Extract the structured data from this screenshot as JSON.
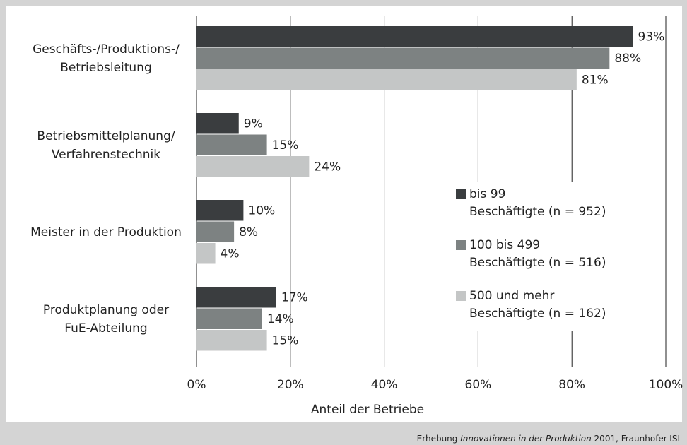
{
  "chart_data": {
    "type": "barh",
    "categories": [
      [
        "Geschäfts-/Produktions-/",
        "Betriebsleitung"
      ],
      [
        "Betriebsmittelplanung/",
        "Verfahrenstechnik"
      ],
      [
        "Meister in der Produktion"
      ],
      [
        "Produktplanung oder",
        "FuE-Abteilung"
      ]
    ],
    "series": [
      {
        "name": [
          "bis 99",
          "Beschäftigte (n = 952)"
        ],
        "color": "#3a3d3f",
        "values": [
          93,
          9,
          10,
          17
        ],
        "value_labels": [
          "93%",
          "9%",
          "10%",
          "17%"
        ]
      },
      {
        "name": [
          "100 bis 499",
          "Beschäftigte (n = 516)"
        ],
        "color": "#7d8282",
        "values": [
          88,
          15,
          8,
          14
        ],
        "value_labels": [
          "88%",
          "15%",
          "8%",
          "14%"
        ]
      },
      {
        "name": [
          "500 und mehr",
          "Beschäftigte (n = 162)"
        ],
        "color": "#c4c6c6",
        "values": [
          81,
          24,
          4,
          15
        ],
        "value_labels": [
          "81%",
          "24%",
          "4%",
          "15%"
        ]
      }
    ],
    "xlim": [
      0,
      100
    ],
    "xticks": [
      {
        "value": 0,
        "label": "0%"
      },
      {
        "value": 20,
        "label": "20%"
      },
      {
        "value": 40,
        "label": "40%"
      },
      {
        "value": 60,
        "label": "60%"
      },
      {
        "value": 80,
        "label": "80%"
      },
      {
        "value": 100,
        "label": "100%"
      }
    ],
    "grid": true,
    "xlabel": "Anteil der Betriebe",
    "source": [
      "Erhebung ",
      "Innovationen in der Produktion",
      " 2001, Fraunhofer-ISI"
    ]
  }
}
